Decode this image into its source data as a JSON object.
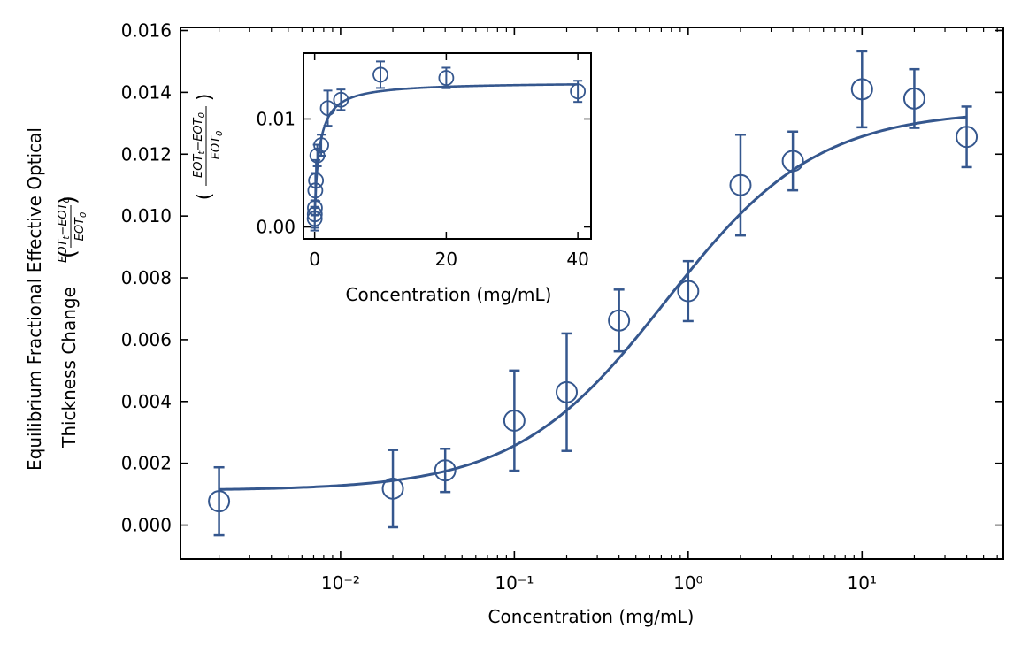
{
  "chart_data": [
    {
      "type": "scatter",
      "x_scale": "log",
      "xlabel": "Concentration (mg/mL)",
      "ylabel_line1": "Equilibrium Fractional Effective Optical",
      "ylabel_line2": "Thickness Change",
      "ylabel_formula": "((EOT_t − EOT_0)/EOT_0)",
      "xlim": [
        0.0012,
        65
      ],
      "ylim": [
        -0.0011,
        0.0161
      ],
      "x_ticks": [
        0.01,
        0.1,
        1,
        10
      ],
      "x_tick_labels": [
        "10⁻²",
        "10⁻¹",
        "10⁰",
        "10¹"
      ],
      "y_ticks": [
        0.0,
        0.002,
        0.004,
        0.006,
        0.008,
        0.01,
        0.012,
        0.014,
        0.016
      ],
      "y_tick_labels": [
        "0.000",
        "0.002",
        "0.004",
        "0.006",
        "0.008",
        "0.010",
        "0.012",
        "0.014",
        "0.016"
      ],
      "color": "#35578e",
      "points": [
        {
          "x": 0.002,
          "y": 0.00077,
          "err": 0.0011
        },
        {
          "x": 0.02,
          "y": 0.00118,
          "err": 0.00125
        },
        {
          "x": 0.04,
          "y": 0.00177,
          "err": 0.0007
        },
        {
          "x": 0.1,
          "y": 0.00338,
          "err": 0.00162
        },
        {
          "x": 0.2,
          "y": 0.0043,
          "err": 0.0019
        },
        {
          "x": 0.4,
          "y": 0.00662,
          "err": 0.001
        },
        {
          "x": 1.0,
          "y": 0.00757,
          "err": 0.00097
        },
        {
          "x": 2.0,
          "y": 0.011,
          "err": 0.00163
        },
        {
          "x": 4.0,
          "y": 0.01178,
          "err": 0.00095
        },
        {
          "x": 10.0,
          "y": 0.0141,
          "err": 0.00123
        },
        {
          "x": 20.0,
          "y": 0.0138,
          "err": 0.00095
        },
        {
          "x": 40.0,
          "y": 0.01256,
          "err": 0.00098
        }
      ],
      "fit": {
        "model": "langmuir",
        "baseline": 0.00112,
        "amplitude": 0.01231,
        "K": 0.75
      }
    },
    {
      "type": "scatter",
      "inset": true,
      "x_scale": "linear",
      "xlabel": "Concentration (mg/mL)",
      "ylabel_formula": "((EOT_t − EOT_0)/EOT_0)",
      "xlim": [
        -1.7,
        42
      ],
      "ylim": [
        -0.0011,
        0.0161
      ],
      "x_ticks": [
        0,
        20,
        40
      ],
      "x_tick_labels": [
        "0",
        "20",
        "40"
      ],
      "y_ticks": [
        0.0,
        0.01
      ],
      "y_tick_labels": [
        "0.00",
        "0.01"
      ],
      "color": "#35578e"
    }
  ]
}
